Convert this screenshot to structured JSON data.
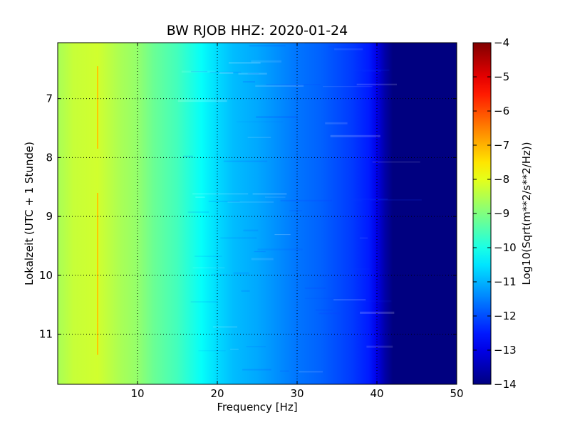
{
  "chart_data": {
    "type": "heatmap",
    "title": "BW RJOB HHZ: 2020-01-24",
    "xlabel": "Frequency [Hz]",
    "ylabel": "Lokalzeit (UTC + 1 Stunde)",
    "xlim": [
      0,
      50
    ],
    "ylim": [
      11.85,
      6.05
    ],
    "x_ticks": [
      10,
      20,
      30,
      40,
      50
    ],
    "y_ticks": [
      7,
      8,
      9,
      10,
      11
    ],
    "grid": true,
    "colormap": "jet",
    "colorbar": {
      "label": "Log10(Sqrt(m**2/s**2/Hz))",
      "range": [
        -14,
        -4
      ],
      "ticks": [
        -4,
        -5,
        -6,
        -7,
        -8,
        -9,
        -10,
        -11,
        -12,
        -13,
        -14
      ]
    },
    "spectrum_profile": {
      "frequencies_hz": [
        0,
        2,
        5,
        8,
        10,
        12,
        15,
        18,
        20,
        22,
        25,
        28,
        30,
        33,
        35,
        37,
        39,
        40,
        41,
        42,
        45,
        50
      ],
      "log10_amplitude": [
        -8.6,
        -8.3,
        -8.2,
        -8.6,
        -8.8,
        -9.2,
        -9.6,
        -10.2,
        -10.6,
        -10.9,
        -11.1,
        -11.4,
        -11.6,
        -11.8,
        -12.0,
        -12.2,
        -12.5,
        -13.0,
        -13.6,
        -14.0,
        -14.0,
        -14.0
      ]
    },
    "annotations": [
      {
        "label": "5 Hz line",
        "frequency_hz": 5,
        "log10_amplitude": -7.2,
        "time_ranges": [
          [
            6.45,
            7.85
          ],
          [
            8.6,
            10.8
          ],
          [
            10.8,
            11.35
          ]
        ]
      }
    ]
  }
}
